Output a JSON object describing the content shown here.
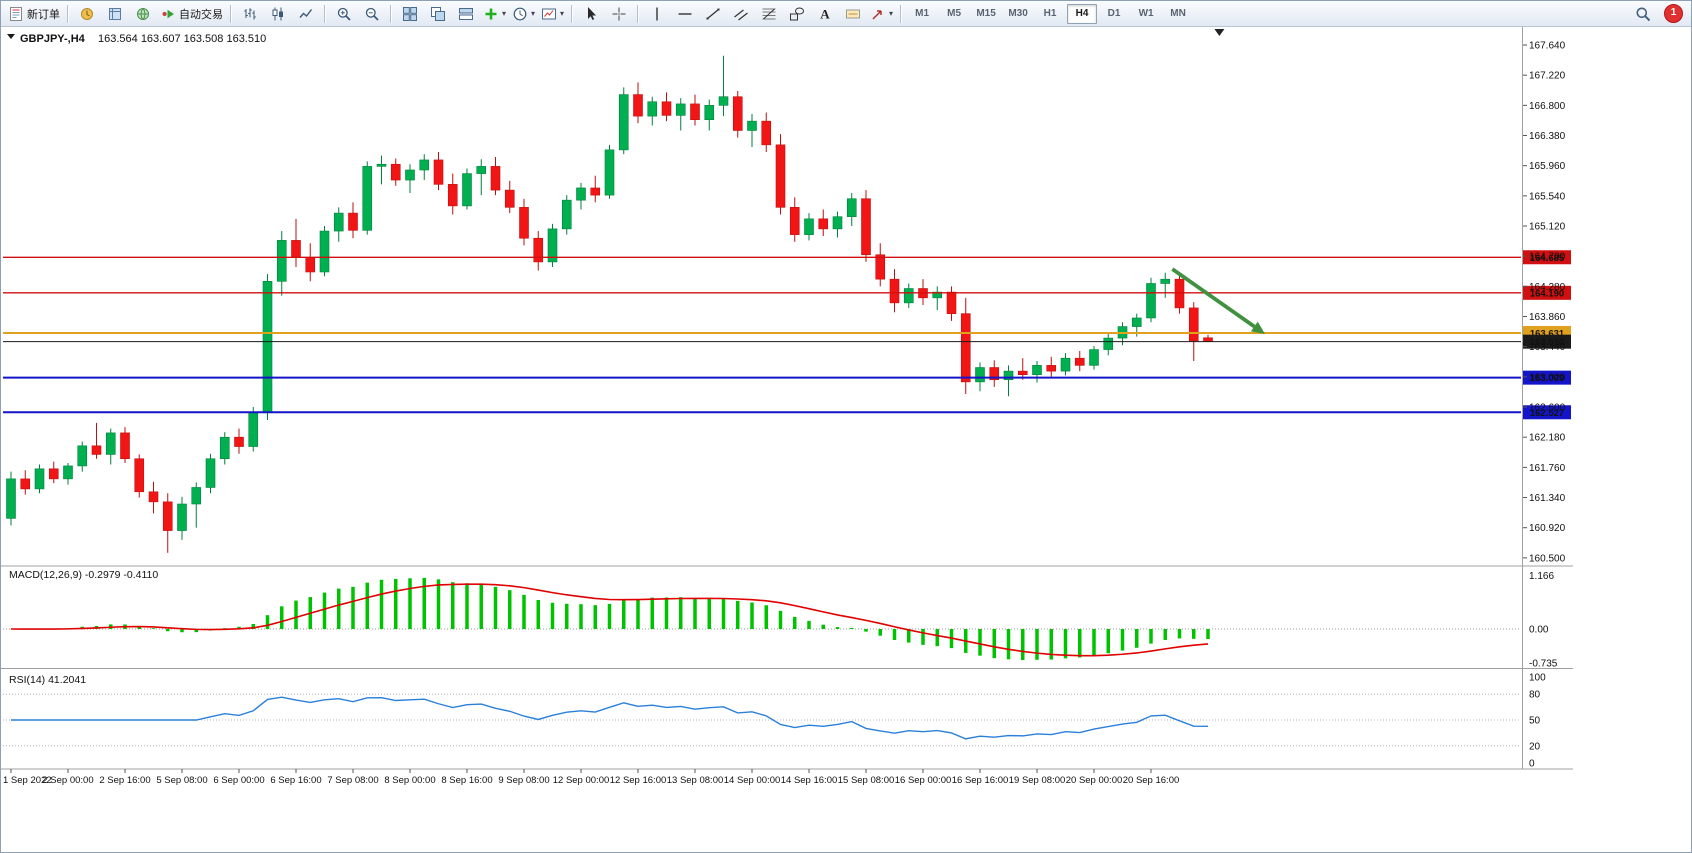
{
  "toolbar": {
    "groups": [
      {
        "items": [
          {
            "name": "new-order-button",
            "icon": "new-order",
            "label": "新订单"
          }
        ]
      },
      {
        "items": [
          {
            "name": "market-watch-button",
            "icon": "market-watch"
          },
          {
            "name": "data-window-button",
            "icon": "data-window"
          },
          {
            "name": "navigator-button",
            "icon": "navigator"
          },
          {
            "name": "auto-trading-button",
            "icon": "auto-trading",
            "label": "自动交易"
          }
        ]
      },
      {
        "items": [
          {
            "name": "bar-chart-button",
            "icon": "ohlc-bars"
          },
          {
            "name": "candlestick-chart-button",
            "icon": "candlesticks"
          },
          {
            "name": "line-chart-button",
            "icon": "line-chart"
          }
        ]
      },
      {
        "items": [
          {
            "name": "zoom-in-button",
            "icon": "zoom-in"
          },
          {
            "name": "zoom-out-button",
            "icon": "zoom-out"
          }
        ]
      },
      {
        "items": [
          {
            "name": "tile-windows-button",
            "icon": "tile-windows"
          },
          {
            "name": "arrange-windows-button",
            "icon": "arrange-windows"
          },
          {
            "name": "cascade-windows-button",
            "icon": "cascade-windows"
          },
          {
            "name": "indicators-button",
            "icon": "indicators",
            "caret": true
          },
          {
            "name": "periods-button",
            "icon": "periods",
            "caret": true
          },
          {
            "name": "templates-button",
            "icon": "templates",
            "caret": true
          }
        ]
      },
      {
        "items": [
          {
            "name": "cursor-button",
            "icon": "cursor"
          },
          {
            "name": "crosshair-button",
            "icon": "crosshair"
          }
        ]
      },
      {
        "items": [
          {
            "name": "vertical-line-button",
            "icon": "vertical-line"
          },
          {
            "name": "horizontal-line-button",
            "icon": "horizontal-line"
          },
          {
            "name": "trendline-button",
            "icon": "trendline"
          },
          {
            "name": "equidistant-channel-button",
            "icon": "equidistant-channel"
          },
          {
            "name": "fibonacci-button",
            "icon": "fibonacci"
          },
          {
            "name": "shapes-button",
            "icon": "shapes"
          },
          {
            "name": "text-button",
            "icon": "text"
          },
          {
            "name": "text-label-button",
            "icon": "text-label"
          },
          {
            "name": "arrows-button",
            "icon": "arrows",
            "caret": true
          }
        ]
      },
      {
        "timeframes": [
          "M1",
          "M5",
          "M15",
          "M30",
          "H1",
          "H4",
          "D1",
          "W1",
          "MN"
        ],
        "active": "H4"
      }
    ],
    "right": {
      "search_icon": "search",
      "notification_count": "1"
    }
  },
  "chart": {
    "type": "candlestick",
    "symbol_period": "GBPJPY-,H4",
    "quote": "163.564 163.607 163.508 163.510",
    "ohlc": {
      "open": "163.564",
      "high": "163.607",
      "low": "163.508",
      "close": "163.510"
    },
    "price_axis_labels": [
      "167.640",
      "167.220",
      "166.800",
      "166.380",
      "165.960",
      "165.540",
      "165.120",
      "164.700",
      "164.280",
      "163.860",
      "163.440",
      "163.020",
      "162.600",
      "162.180",
      "161.760",
      "161.340",
      "160.920",
      "160.500"
    ],
    "levels": [
      {
        "price": "164.685",
        "color": "#d01010",
        "width": 1.4,
        "badge_text": "#ffffff",
        "role": "resistance"
      },
      {
        "price": "164.190",
        "color": "#d01010",
        "width": 1.4,
        "badge_text": "#ffffff",
        "role": "resistance"
      },
      {
        "price": "163.631",
        "color": "#e0a11e",
        "width": 2,
        "badge_text": "#222222",
        "role": "pivot"
      },
      {
        "price": "163.510",
        "color": "#1a1a1a",
        "width": 1,
        "badge_text": "#ffffff",
        "role": "current-price"
      },
      {
        "price": "163.009",
        "color": "#1414c8",
        "width": 2,
        "badge_text": "#ffffff",
        "role": "support"
      },
      {
        "price": "162.527",
        "color": "#1414c8",
        "width": 2,
        "badge_text": "#ffffff",
        "role": "support"
      }
    ],
    "time_labels": [
      "1 Sep 2022",
      "2 Sep 00:00",
      "2 Sep 16:00",
      "5 Sep 08:00",
      "6 Sep 00:00",
      "6 Sep 16:00",
      "7 Sep 08:00",
      "8 Sep 00:00",
      "8 Sep 16:00",
      "9 Sep 08:00",
      "12 Sep 00:00",
      "12 Sep 16:00",
      "13 Sep 08:00",
      "14 Sep 00:00",
      "14 Sep 16:00",
      "15 Sep 08:00",
      "16 Sep 00:00",
      "16 Sep 16:00",
      "19 Sep 08:00",
      "20 Sep 00:00",
      "20 Sep 16:00"
    ],
    "candles": [
      [
        161.05,
        161.7,
        160.95,
        161.6
      ],
      [
        161.6,
        161.72,
        161.38,
        161.46
      ],
      [
        161.46,
        161.8,
        161.4,
        161.74
      ],
      [
        161.74,
        161.84,
        161.54,
        161.6
      ],
      [
        161.6,
        161.82,
        161.52,
        161.78
      ],
      [
        161.78,
        162.12,
        161.7,
        162.06
      ],
      [
        162.06,
        162.38,
        161.88,
        161.94
      ],
      [
        161.94,
        162.3,
        161.8,
        162.24
      ],
      [
        162.24,
        162.32,
        161.82,
        161.88
      ],
      [
        161.88,
        161.94,
        161.34,
        161.42
      ],
      [
        161.42,
        161.56,
        161.12,
        161.28
      ],
      [
        161.28,
        161.4,
        160.57,
        160.88
      ],
      [
        160.88,
        161.35,
        160.75,
        161.25
      ],
      [
        161.25,
        161.55,
        160.92,
        161.48
      ],
      [
        161.48,
        161.95,
        161.4,
        161.88
      ],
      [
        161.88,
        162.25,
        161.8,
        162.18
      ],
      [
        162.18,
        162.3,
        161.95,
        162.05
      ],
      [
        162.05,
        162.6,
        161.98,
        162.52
      ],
      [
        162.52,
        164.45,
        162.42,
        164.35
      ],
      [
        164.35,
        165.05,
        164.15,
        164.92
      ],
      [
        164.92,
        165.22,
        164.55,
        164.68
      ],
      [
        164.68,
        164.88,
        164.35,
        164.48
      ],
      [
        164.48,
        165.12,
        164.42,
        165.05
      ],
      [
        165.05,
        165.38,
        164.9,
        165.3
      ],
      [
        165.3,
        165.45,
        164.95,
        165.06
      ],
      [
        165.06,
        166.02,
        165.0,
        165.95
      ],
      [
        165.95,
        166.1,
        165.7,
        165.98
      ],
      [
        165.98,
        166.06,
        165.68,
        165.76
      ],
      [
        165.76,
        165.98,
        165.58,
        165.9
      ],
      [
        165.9,
        166.12,
        165.76,
        166.04
      ],
      [
        166.04,
        166.15,
        165.62,
        165.7
      ],
      [
        165.7,
        165.85,
        165.28,
        165.4
      ],
      [
        165.4,
        165.92,
        165.35,
        165.85
      ],
      [
        165.85,
        166.05,
        165.55,
        165.95
      ],
      [
        165.95,
        166.08,
        165.55,
        165.62
      ],
      [
        165.62,
        165.75,
        165.3,
        165.38
      ],
      [
        165.38,
        165.5,
        164.85,
        164.95
      ],
      [
        164.95,
        165.05,
        164.5,
        164.62
      ],
      [
        164.62,
        165.15,
        164.55,
        165.08
      ],
      [
        165.08,
        165.55,
        165.0,
        165.48
      ],
      [
        165.48,
        165.72,
        165.35,
        165.65
      ],
      [
        165.65,
        165.82,
        165.45,
        165.55
      ],
      [
        165.55,
        166.25,
        165.5,
        166.18
      ],
      [
        166.18,
        167.05,
        166.12,
        166.95
      ],
      [
        166.95,
        167.12,
        166.55,
        166.65
      ],
      [
        166.65,
        166.92,
        166.52,
        166.85
      ],
      [
        166.85,
        166.98,
        166.58,
        166.66
      ],
      [
        166.66,
        166.9,
        166.45,
        166.82
      ],
      [
        166.82,
        166.95,
        166.52,
        166.6
      ],
      [
        166.6,
        166.88,
        166.45,
        166.8
      ],
      [
        166.8,
        167.49,
        166.65,
        166.92
      ],
      [
        166.92,
        167.0,
        166.35,
        166.45
      ],
      [
        166.45,
        166.68,
        166.22,
        166.58
      ],
      [
        166.58,
        166.7,
        166.15,
        166.25
      ],
      [
        166.25,
        166.4,
        165.28,
        165.38
      ],
      [
        165.38,
        165.52,
        164.9,
        165.0
      ],
      [
        165.0,
        165.3,
        164.92,
        165.22
      ],
      [
        165.22,
        165.35,
        164.98,
        165.08
      ],
      [
        165.08,
        165.32,
        164.96,
        165.25
      ],
      [
        165.25,
        165.58,
        165.12,
        165.5
      ],
      [
        165.5,
        165.62,
        164.62,
        164.72
      ],
      [
        164.72,
        164.88,
        164.28,
        164.38
      ],
      [
        164.38,
        164.52,
        163.92,
        164.05
      ],
      [
        164.05,
        164.32,
        163.98,
        164.25
      ],
      [
        164.25,
        164.38,
        164.02,
        164.12
      ],
      [
        164.12,
        164.28,
        163.95,
        164.2
      ],
      [
        164.2,
        164.28,
        163.8,
        163.9
      ],
      [
        163.9,
        164.12,
        162.78,
        162.95
      ],
      [
        162.95,
        163.22,
        162.82,
        163.15
      ],
      [
        163.15,
        163.25,
        162.88,
        162.98
      ],
      [
        162.98,
        163.18,
        162.75,
        163.1
      ],
      [
        163.1,
        163.28,
        162.98,
        163.05
      ],
      [
        163.05,
        163.24,
        162.94,
        163.18
      ],
      [
        163.18,
        163.3,
        163.02,
        163.1
      ],
      [
        163.1,
        163.35,
        163.04,
        163.28
      ],
      [
        163.28,
        163.38,
        163.1,
        163.18
      ],
      [
        163.18,
        163.45,
        163.12,
        163.4
      ],
      [
        163.4,
        163.62,
        163.32,
        163.56
      ],
      [
        163.56,
        163.78,
        163.46,
        163.72
      ],
      [
        163.72,
        163.9,
        163.58,
        163.84
      ],
      [
        163.84,
        164.4,
        163.78,
        164.32
      ],
      [
        164.32,
        164.47,
        164.12,
        164.38
      ],
      [
        164.38,
        164.44,
        163.9,
        163.98
      ],
      [
        163.98,
        164.06,
        163.24,
        163.52
      ],
      [
        163.564,
        163.607,
        163.508,
        163.51
      ]
    ],
    "arrow_annotation": {
      "from_bar": 81.5,
      "from_price": 164.52,
      "to_bar": 88,
      "to_price": 163.617,
      "color": "#3f9140"
    },
    "shift_marker_bar": 84.8,
    "colors": {
      "bull": "#00b050",
      "bear": "#f21515",
      "background": "#ffffff"
    }
  },
  "macd": {
    "display": "MACD(12,26,9) -0.2979 -0.4110",
    "label": "MACD(12,26,9)",
    "macd_value": "-0.2979",
    "signal_value": "-0.4110",
    "fast": 12,
    "slow": 26,
    "smoothing": 9,
    "axis_labels": [
      "1.166",
      "0.00",
      "-0.735"
    ],
    "colors": {
      "histogram": "#00c300",
      "signal": "#e00000"
    }
  },
  "rsi": {
    "display": "RSI(14) 41.2041",
    "label": "RSI(14)",
    "value": "41.2041",
    "period": 14,
    "axis_labels": [
      "100",
      "80",
      "50",
      "20",
      "0"
    ],
    "color": "#2a80d8"
  }
}
